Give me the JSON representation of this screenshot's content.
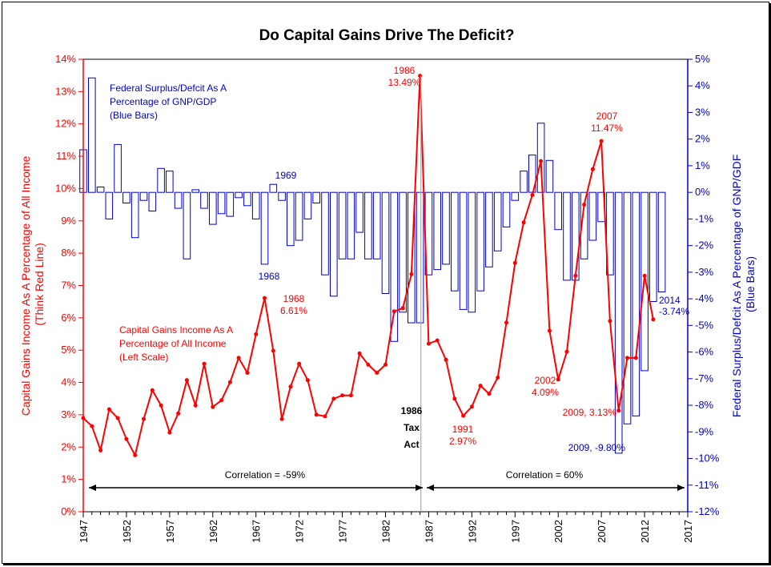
{
  "chart_data": {
    "type": "line",
    "title": "Do Capital Gains Drive The Deficit?",
    "ylabel_left": [
      "Capital Gains Income As A Percentage of All Income",
      "(Think Red Line)"
    ],
    "ylabel_right": [
      "Federal Surplus/Defcit As A Percentage of GNP/GDF",
      "(Blue Bars)"
    ],
    "xlim": [
      1947,
      2017
    ],
    "x_ticks": [
      1947,
      1952,
      1957,
      1962,
      1967,
      1972,
      1977,
      1982,
      1987,
      1992,
      1997,
      2002,
      2007,
      2012,
      2017
    ],
    "ylim_left": [
      0,
      14
    ],
    "ylim_right": [
      -12,
      5
    ],
    "left_ticks": [
      "0%",
      "1%",
      "2%",
      "3%",
      "4%",
      "5%",
      "6%",
      "7%",
      "8%",
      "9%",
      "10%",
      "11%",
      "12%",
      "13%",
      "14%"
    ],
    "right_ticks": [
      "-12%",
      "-11%",
      "-10%",
      "-9%",
      "-8%",
      "-7%",
      "-6%",
      "-5%",
      "-4%",
      "-3%",
      "-2%",
      "-1%",
      "0%",
      "1%",
      "2%",
      "3%",
      "4%",
      "5%"
    ],
    "colors": {
      "capital_gains": "#ff0000",
      "deficit": "#0000cc",
      "divider": "#aaaaaa"
    },
    "series": [
      {
        "name": "Capital Gains Income As A Percentage of All Income (Left Scale)",
        "axis": "left",
        "x": [
          1947,
          1948,
          1949,
          1950,
          1951,
          1952,
          1953,
          1954,
          1955,
          1956,
          1957,
          1958,
          1959,
          1960,
          1961,
          1962,
          1963,
          1964,
          1965,
          1966,
          1967,
          1968,
          1969,
          1970,
          1971,
          1972,
          1973,
          1974,
          1975,
          1976,
          1977,
          1978,
          1979,
          1980,
          1981,
          1982,
          1983,
          1984,
          1985,
          1986,
          1987,
          1988,
          1989,
          1990,
          1991,
          1992,
          1993,
          1994,
          1995,
          1996,
          1997,
          1998,
          1999,
          2000,
          2001,
          2002,
          2003,
          2004,
          2005,
          2006,
          2007,
          2008,
          2009,
          2010,
          2011,
          2012,
          2013
        ],
        "values": [
          2.9,
          2.65,
          1.9,
          3.17,
          2.9,
          2.25,
          1.75,
          2.87,
          3.76,
          3.29,
          2.45,
          3.04,
          4.07,
          3.29,
          4.58,
          3.24,
          3.45,
          4.01,
          4.76,
          4.3,
          5.49,
          6.61,
          4.98,
          2.87,
          3.87,
          4.58,
          4.07,
          3.0,
          2.95,
          3.5,
          3.6,
          3.6,
          4.9,
          4.55,
          4.3,
          4.55,
          6.2,
          6.3,
          7.35,
          13.49,
          5.2,
          5.3,
          4.7,
          3.5,
          2.97,
          3.25,
          3.9,
          3.65,
          4.15,
          5.85,
          7.7,
          8.95,
          9.8,
          10.85,
          5.6,
          4.09,
          4.95,
          7.3,
          9.5,
          10.6,
          11.47,
          5.9,
          3.13,
          4.76,
          4.76,
          7.3,
          5.95
        ]
      },
      {
        "name": "Federal Surplus/Defcit As A Percentage of GNP/GDP (Blue Bars)",
        "axis": "right",
        "x": [
          1947,
          1948,
          1949,
          1950,
          1951,
          1952,
          1953,
          1954,
          1955,
          1956,
          1957,
          1958,
          1959,
          1960,
          1961,
          1962,
          1963,
          1964,
          1965,
          1966,
          1967,
          1968,
          1969,
          1970,
          1971,
          1972,
          1973,
          1974,
          1975,
          1976,
          1977,
          1978,
          1979,
          1980,
          1981,
          1982,
          1983,
          1984,
          1985,
          1986,
          1987,
          1988,
          1989,
          1990,
          1991,
          1992,
          1993,
          1994,
          1995,
          1996,
          1997,
          1998,
          1999,
          2000,
          2001,
          2002,
          2003,
          2004,
          2005,
          2006,
          2007,
          2008,
          2009,
          2010,
          2011,
          2012,
          2013,
          2014
        ],
        "values": [
          1.6,
          4.3,
          0.2,
          -1.0,
          1.8,
          -0.4,
          -1.7,
          -0.3,
          -0.7,
          0.9,
          0.8,
          -0.6,
          -2.5,
          0.1,
          -0.6,
          -1.2,
          -0.8,
          -0.9,
          -0.2,
          -0.5,
          -1.0,
          -2.7,
          0.3,
          -0.3,
          -2.0,
          -1.8,
          -1.0,
          -0.4,
          -3.1,
          -3.9,
          -2.5,
          -2.5,
          -1.5,
          -2.5,
          -2.5,
          -3.8,
          -5.6,
          -4.5,
          -4.9,
          -4.9,
          -3.1,
          -2.9,
          -2.7,
          -3.7,
          -4.4,
          -4.5,
          -3.7,
          -2.8,
          -2.2,
          -1.3,
          -0.3,
          0.8,
          1.4,
          2.6,
          1.2,
          -1.4,
          -3.3,
          -3.3,
          -2.5,
          -1.8,
          -1.1,
          -3.1,
          -9.8,
          -8.7,
          -8.4,
          -6.7,
          -4.1,
          -3.74
        ]
      }
    ],
    "annotations": {
      "peak_1986": [
        "1986",
        "13.49%"
      ],
      "peak_2007": [
        "2007",
        "11.47%"
      ],
      "label_1968_red": [
        "1968",
        "6.61%"
      ],
      "label_1969_blue": "1969",
      "label_1968_blue": "1968",
      "label_1991": [
        "1991",
        "2.97%"
      ],
      "label_2002": [
        "2002",
        "4.09%"
      ],
      "label_2009_red": "2009, 3.13%",
      "label_2009_blue": "2009, -9.80%",
      "label_2014": [
        "2014",
        "-3.74%"
      ],
      "tax_act": [
        "1986",
        "Tax",
        "Act"
      ],
      "deficit_legend": [
        "Federal Surplus/Defcit As A",
        "Percentage of GNP/GDP",
        "(Blue Bars)"
      ],
      "cg_legend": [
        "Capital Gains Income As A",
        "Percentage of All Income",
        "(Left Scale)"
      ],
      "correlation_left": "Correlation = -59%",
      "correlation_right": "Correlation = 60%"
    }
  }
}
